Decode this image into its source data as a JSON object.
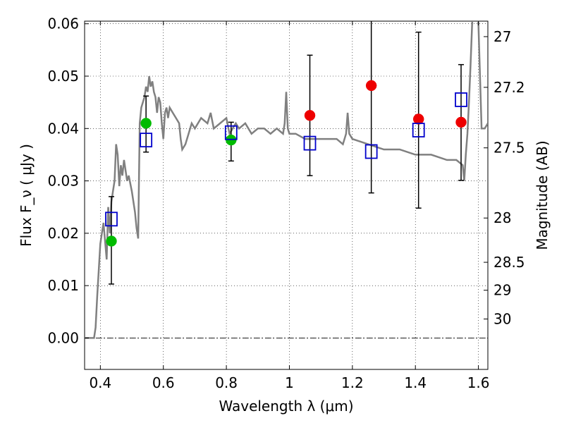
{
  "chart_data": {
    "type": "scatter",
    "xlabel": "Wavelength  λ (μm)",
    "ylabel": "Flux  F_ν  ( μJy )",
    "ylabel_right": "Magnitude (AB)",
    "xlim": [
      0.35,
      1.63
    ],
    "ylim": [
      -0.006,
      0.0605
    ],
    "x_ticks": [
      0.4,
      0.6,
      0.8,
      1.0,
      1.2,
      1.4,
      1.6
    ],
    "x_tick_labels": [
      "0.4",
      "0.6",
      "0.8",
      "1",
      "1.2",
      "1.4",
      "1.6"
    ],
    "y_ticks": [
      0.0,
      0.01,
      0.02,
      0.03,
      0.04,
      0.05,
      0.06
    ],
    "y_tick_labels": [
      "0.00",
      "0.01",
      "0.02",
      "0.03",
      "0.04",
      "0.05",
      "0.06"
    ],
    "right_ticks": [
      {
        "label": "27",
        "mag": 27.0
      },
      {
        "label": "27.2",
        "mag": 27.2
      },
      {
        "label": "27.5",
        "mag": 27.5
      },
      {
        "label": "28",
        "mag": 28.0
      },
      {
        "label": "28.5",
        "mag": 28.5
      },
      {
        "label": "29",
        "mag": 29.0
      },
      {
        "label": "30",
        "mag": 30.0
      }
    ],
    "grid": true,
    "colors": {
      "model": "#808080",
      "observed": "#00bb00",
      "observed_upper": "#ee0000",
      "model_photometry": "#0000cc",
      "errorbar": "#000000"
    },
    "model_spectrum": {
      "x": [
        0.35,
        0.38,
        0.385,
        0.39,
        0.4,
        0.41,
        0.42,
        0.425,
        0.43,
        0.435,
        0.44,
        0.445,
        0.45,
        0.455,
        0.46,
        0.465,
        0.47,
        0.475,
        0.48,
        0.485,
        0.49,
        0.5,
        0.51,
        0.515,
        0.52,
        0.525,
        0.53,
        0.54,
        0.545,
        0.55,
        0.555,
        0.56,
        0.565,
        0.57,
        0.575,
        0.58,
        0.585,
        0.59,
        0.595,
        0.6,
        0.605,
        0.61,
        0.615,
        0.62,
        0.63,
        0.64,
        0.65,
        0.655,
        0.66,
        0.67,
        0.68,
        0.69,
        0.7,
        0.72,
        0.74,
        0.75,
        0.76,
        0.78,
        0.8,
        0.81,
        0.82,
        0.83,
        0.84,
        0.86,
        0.88,
        0.9,
        0.92,
        0.94,
        0.96,
        0.98,
        0.985,
        0.99,
        0.995,
        1.0,
        1.02,
        1.05,
        1.1,
        1.15,
        1.17,
        1.18,
        1.185,
        1.19,
        1.2,
        1.25,
        1.3,
        1.35,
        1.4,
        1.45,
        1.5,
        1.53,
        1.55,
        1.555,
        1.56,
        1.565,
        1.57,
        1.575,
        1.58,
        1.585,
        1.59,
        1.595,
        1.6,
        1.61,
        1.62,
        1.63
      ],
      "y": [
        0.0,
        0.0,
        0.002,
        0.008,
        0.018,
        0.022,
        0.015,
        0.025,
        0.02,
        0.026,
        0.028,
        0.03,
        0.037,
        0.035,
        0.029,
        0.033,
        0.031,
        0.034,
        0.032,
        0.03,
        0.031,
        0.028,
        0.024,
        0.021,
        0.019,
        0.041,
        0.044,
        0.046,
        0.048,
        0.047,
        0.05,
        0.048,
        0.049,
        0.047,
        0.046,
        0.043,
        0.046,
        0.045,
        0.041,
        0.038,
        0.043,
        0.044,
        0.042,
        0.044,
        0.043,
        0.042,
        0.041,
        0.038,
        0.036,
        0.037,
        0.039,
        0.041,
        0.04,
        0.042,
        0.041,
        0.043,
        0.04,
        0.041,
        0.042,
        0.039,
        0.04,
        0.041,
        0.04,
        0.041,
        0.039,
        0.04,
        0.04,
        0.039,
        0.04,
        0.039,
        0.041,
        0.047,
        0.04,
        0.039,
        0.039,
        0.038,
        0.038,
        0.038,
        0.037,
        0.039,
        0.043,
        0.039,
        0.038,
        0.037,
        0.036,
        0.036,
        0.035,
        0.035,
        0.034,
        0.034,
        0.033,
        0.03,
        0.035,
        0.039,
        0.045,
        0.052,
        0.06,
        0.066,
        0.07,
        0.066,
        0.06,
        0.04,
        0.04,
        0.041
      ]
    },
    "series": [
      {
        "marker": "circle",
        "color": "#00bb00",
        "x": [
          0.435,
          0.545,
          0.815
        ],
        "y": [
          0.0185,
          0.041,
          0.0378
        ],
        "yerr_low": [
          0.0103,
          0.0355,
          0.0338
        ],
        "yerr_high": [
          0.027,
          0.0462,
          0.0412
        ]
      },
      {
        "marker": "circle",
        "color": "#ee0000",
        "x": [
          1.065,
          1.26,
          1.41,
          1.545
        ],
        "y": [
          0.0425,
          0.0482,
          0.0418,
          0.0412
        ],
        "yerr_low": [
          0.031,
          0.0277,
          0.0248,
          0.0301
        ],
        "yerr_high": [
          0.054,
          0.0625,
          0.0584,
          0.0522
        ]
      },
      {
        "marker": "open-square",
        "color": "#0000cc",
        "x": [
          0.435,
          0.545,
          0.815,
          1.065,
          1.26,
          1.41,
          1.545
        ],
        "y": [
          0.0227,
          0.0378,
          0.0392,
          0.0372,
          0.0356,
          0.0397,
          0.0455
        ]
      }
    ]
  }
}
